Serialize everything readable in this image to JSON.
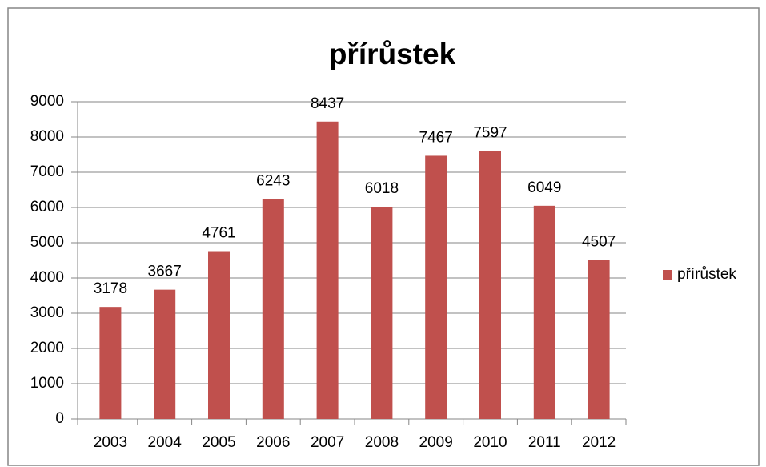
{
  "chart_data": {
    "type": "bar",
    "title": "přírůstek",
    "categories": [
      "2003",
      "2004",
      "2005",
      "2006",
      "2007",
      "2008",
      "2009",
      "2010",
      "2011",
      "2012"
    ],
    "series": [
      {
        "name": "přírůstek",
        "color": "#c0504d",
        "values": [
          3178,
          3667,
          4761,
          6243,
          8437,
          6018,
          7467,
          7597,
          6049,
          4507
        ]
      }
    ],
    "ylim": [
      0,
      9000
    ],
    "yticks": [
      0,
      1000,
      2000,
      3000,
      4000,
      5000,
      6000,
      7000,
      8000,
      9000
    ],
    "grid": true,
    "legend": "right"
  }
}
